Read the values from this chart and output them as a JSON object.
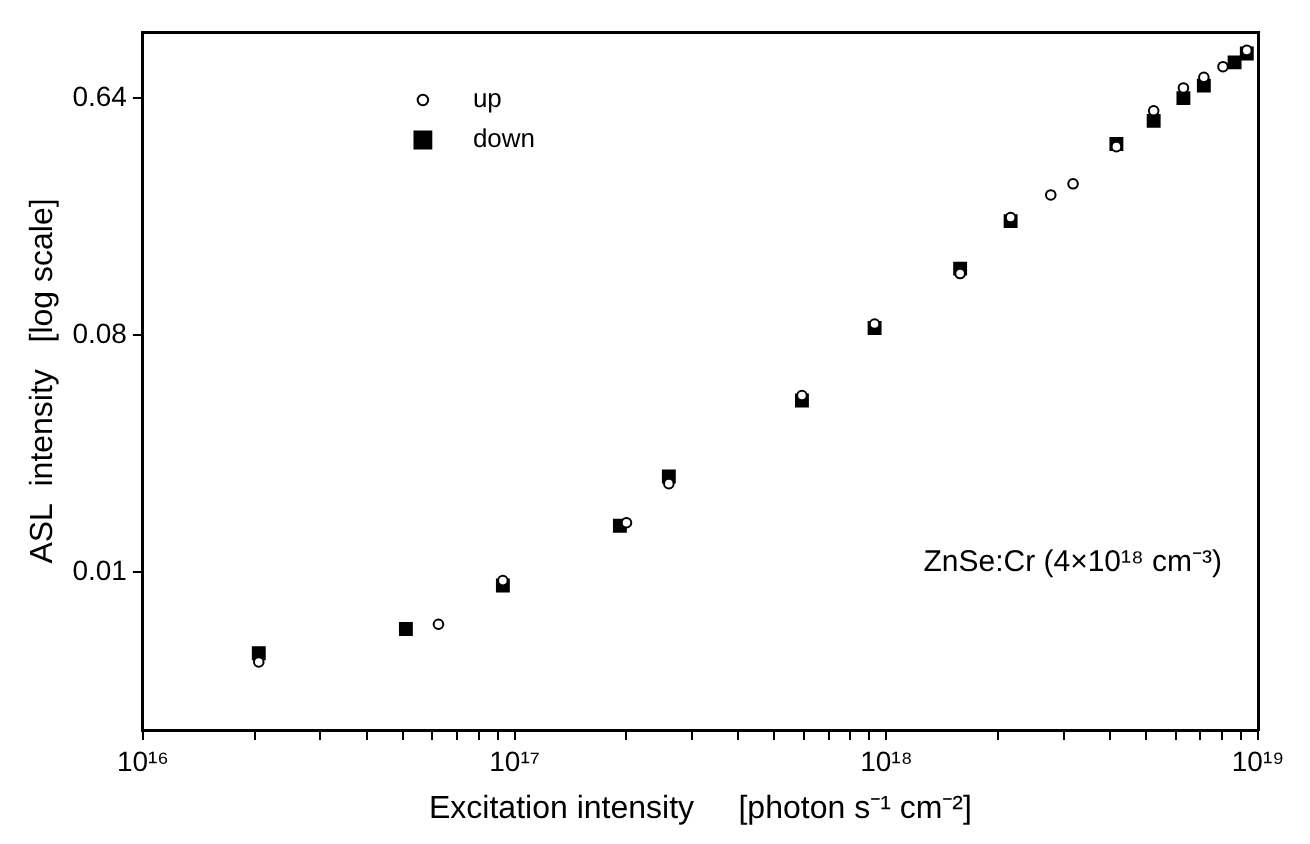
{
  "chart_data": {
    "type": "scatter",
    "xlabel": "Excitation intensity     [photon s⁻¹ cm⁻²]",
    "ylabel": "ASL  intensity   [log scale]",
    "annotations": [
      "ZnSe:Cr (4×10¹⁸ cm⁻³)"
    ],
    "log": "xy",
    "legend": "top left",
    "grid": false,
    "xlim": [
      1e+16,
      1e+19
    ],
    "ylim": [
      0.0025,
      1.14
    ],
    "xticks": [
      {
        "value": 1e+16,
        "label": "10¹⁶"
      },
      {
        "value": 2e+16,
        "label": null
      },
      {
        "value": 3e+16,
        "label": null
      },
      {
        "value": 4e+16,
        "label": null
      },
      {
        "value": 5e+16,
        "label": null
      },
      {
        "value": 6e+16,
        "label": null
      },
      {
        "value": 7e+16,
        "label": null
      },
      {
        "value": 8e+16,
        "label": null
      },
      {
        "value": 9e+16,
        "label": null
      },
      {
        "value": 1e+17,
        "label": "10¹⁷"
      },
      {
        "value": 2e+17,
        "label": null
      },
      {
        "value": 3e+17,
        "label": null
      },
      {
        "value": 4e+17,
        "label": null
      },
      {
        "value": 5e+17,
        "label": null
      },
      {
        "value": 6e+17,
        "label": null
      },
      {
        "value": 7e+17,
        "label": null
      },
      {
        "value": 8e+17,
        "label": null
      },
      {
        "value": 9e+17,
        "label": null
      },
      {
        "value": 1e+18,
        "label": "10¹⁸"
      },
      {
        "value": 2e+18,
        "label": null
      },
      {
        "value": 3e+18,
        "label": null
      },
      {
        "value": 4e+18,
        "label": null
      },
      {
        "value": 5e+18,
        "label": null
      },
      {
        "value": 6e+18,
        "label": null
      },
      {
        "value": 7e+18,
        "label": null
      },
      {
        "value": 8e+18,
        "label": null
      },
      {
        "value": 9e+18,
        "label": null
      },
      {
        "value": 1e+19,
        "label": "10¹⁹"
      }
    ],
    "yticks": [
      0.01,
      0.08,
      0.64
    ],
    "series": [
      {
        "name": "up",
        "color": "#000000",
        "marker": "circle",
        "x": [
          2.05e+16,
          6.24e+16,
          9.3e+16,
          2e+17,
          2.6e+17,
          5.93e+17,
          9.3e+17,
          1.58e+18,
          2.16e+18,
          2.77e+18,
          3.18e+18,
          4.16e+18,
          5.24e+18,
          6.3e+18,
          7.15e+18,
          8.05e+18,
          9.33e+18
        ],
        "values": [
          0.00454,
          0.00632,
          0.00927,
          0.0154,
          0.0217,
          0.047,
          0.088,
          0.137,
          0.224,
          0.273,
          0.301,
          0.417,
          0.571,
          0.698,
          0.766,
          0.841,
          0.97
        ]
      },
      {
        "name": "down",
        "color": "#000000",
        "marker": "square",
        "x": [
          2.05e+16,
          5.1e+16,
          9.3e+16,
          1.92e+17,
          2.6e+17,
          5.93e+17,
          9.3e+17,
          1.58e+18,
          2.16e+18,
          4.16e+18,
          5.24e+18,
          6.3e+18,
          7.15e+18,
          8.65e+18,
          9.33e+18
        ],
        "values": [
          0.0049,
          0.00606,
          0.00888,
          0.015,
          0.0231,
          0.045,
          0.085,
          0.143,
          0.217,
          0.427,
          0.523,
          0.638,
          0.712,
          0.873,
          0.944
        ]
      }
    ]
  }
}
